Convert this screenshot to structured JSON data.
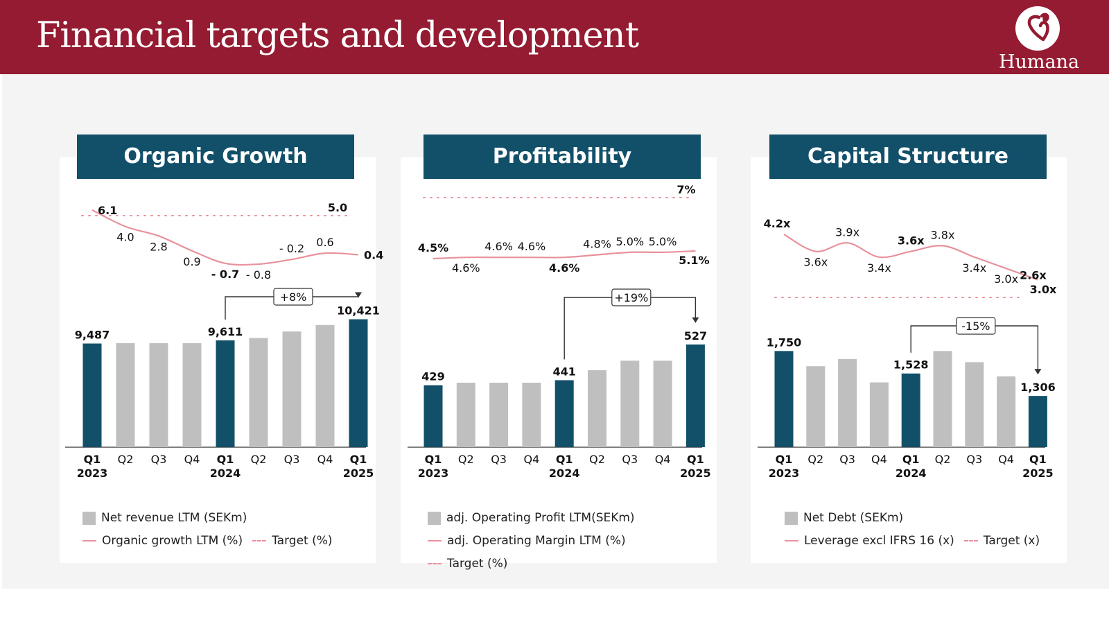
{
  "header": {
    "title": "Financial targets and development",
    "logo_text": "Humana",
    "logo_icon": "humana-logo-icon"
  },
  "colors": {
    "header_bg": "#941b31",
    "panel_header_bg": "#12506a",
    "bar_highlight": "#12506a",
    "bar_regular": "#bfbfbf",
    "line": "#e8919c"
  },
  "categories": [
    {
      "q": "Q1",
      "year": "2023"
    },
    {
      "q": "Q2",
      "year": ""
    },
    {
      "q": "Q3",
      "year": ""
    },
    {
      "q": "Q4",
      "year": ""
    },
    {
      "q": "Q1",
      "year": "2024"
    },
    {
      "q": "Q2",
      "year": ""
    },
    {
      "q": "Q3",
      "year": ""
    },
    {
      "q": "Q4",
      "year": ""
    },
    {
      "q": "Q1",
      "year": "2025"
    }
  ],
  "chart_data": [
    {
      "type": "bar",
      "title": "Organic Growth",
      "categories": [
        "Q1 2023",
        "Q2",
        "Q3",
        "Q4",
        "Q1 2024",
        "Q2",
        "Q3",
        "Q4",
        "Q1 2025"
      ],
      "bars": {
        "name": "Net revenue LTM (SEKm)",
        "values": [
          9487,
          9500,
          9500,
          9500,
          9611,
          9700,
          9950,
          10200,
          10421
        ],
        "labels": [
          "9,487",
          "",
          "",
          "",
          "9,611",
          "",
          "",
          "",
          "10,421"
        ],
        "highlight": [
          0,
          4,
          8
        ]
      },
      "line": {
        "name": "Organic growth LTM (%)",
        "values": [
          6.1,
          4.0,
          2.8,
          0.9,
          -0.7,
          -0.8,
          -0.2,
          0.6,
          0.4
        ],
        "labels": [
          "6.1",
          "4.0",
          "2.8",
          "0.9",
          "- 0.7",
          "- 0.8",
          "- 0.2",
          "0.6",
          "0.4"
        ],
        "bold": [
          0,
          4,
          8
        ],
        "label_pos": [
          "right",
          "below",
          "below",
          "below",
          "below",
          "below",
          "above",
          "above",
          "right"
        ]
      },
      "target": {
        "name": "Target (%)",
        "value": 5.0,
        "label": "5.0"
      },
      "change": {
        "from": 4,
        "to": 8,
        "label": "+8%"
      },
      "legend": [
        "Net revenue LTM (SEKm)",
        "Organic growth LTM (%)",
        "Target (%)"
      ]
    },
    {
      "type": "bar",
      "title": "Profitability",
      "categories": [
        "Q1 2023",
        "Q2",
        "Q3",
        "Q4",
        "Q1 2024",
        "Q2",
        "Q3",
        "Q4",
        "Q1 2025"
      ],
      "bars": {
        "name": "adj. Operating Profit LTM(SEKm)",
        "values": [
          429,
          435,
          435,
          435,
          441,
          465,
          488,
          488,
          527
        ],
        "labels": [
          "429",
          "",
          "",
          "",
          "441",
          "",
          "",
          "",
          "527"
        ],
        "highlight": [
          0,
          4,
          8
        ]
      },
      "line": {
        "name": "adj. Operating Margin LTM (%)",
        "values": [
          4.5,
          4.6,
          4.6,
          4.6,
          4.6,
          4.8,
          5.0,
          5.0,
          5.1
        ],
        "labels": [
          "4.5%",
          "4.6%",
          "4.6%",
          "4.6%",
          "4.6%",
          "4.8%",
          "5.0%",
          "5.0%",
          "5.1%"
        ],
        "bold": [
          0,
          4,
          8
        ],
        "label_pos": [
          "above",
          "below",
          "above",
          "above",
          "below",
          "above",
          "above",
          "above",
          "below"
        ]
      },
      "target": {
        "name": "Target (%)",
        "value": 7,
        "label": "7%"
      },
      "change": {
        "from": 4,
        "to": 8,
        "label": "+19%"
      },
      "legend": [
        "adj. Operating Profit LTM(SEKm)",
        "adj. Operating Margin LTM (%)",
        "Target (%)"
      ]
    },
    {
      "type": "bar",
      "title": "Capital Structure",
      "categories": [
        "Q1 2023",
        "Q2",
        "Q3",
        "Q4",
        "Q1 2024",
        "Q2",
        "Q3",
        "Q4",
        "Q1 2025"
      ],
      "bars": {
        "name": "Net Debt (SEKm)",
        "values": [
          1750,
          1600,
          1670,
          1440,
          1528,
          1750,
          1640,
          1500,
          1306
        ],
        "labels": [
          "1,750",
          "",
          "",
          "",
          "1,528",
          "",
          "",
          "",
          "1,306"
        ],
        "highlight": [
          0,
          4,
          8
        ]
      },
      "line": {
        "name": "Leverage excl IFRS 16 (x)",
        "values": [
          4.2,
          3.6,
          3.9,
          3.4,
          3.6,
          3.8,
          3.4,
          3.0,
          2.6
        ],
        "labels": [
          "4.2x",
          "3.6x",
          "3.9x",
          "3.4x",
          "3.6x",
          "3.8x",
          "3.4x",
          "3.0x",
          "2.6x"
        ],
        "bold": [
          0,
          4,
          8
        ],
        "label_pos": [
          "above",
          "below",
          "above",
          "below",
          "above",
          "above",
          "below",
          "below",
          "below"
        ]
      },
      "target": {
        "name": "Target (x)",
        "value": 3.0,
        "label": "3.0x"
      },
      "change": {
        "from": 4,
        "to": 8,
        "label": "-15%"
      },
      "legend": [
        "Net Debt (SEKm)",
        "Leverage excl IFRS 16 (x)",
        "Target (x)"
      ]
    }
  ]
}
